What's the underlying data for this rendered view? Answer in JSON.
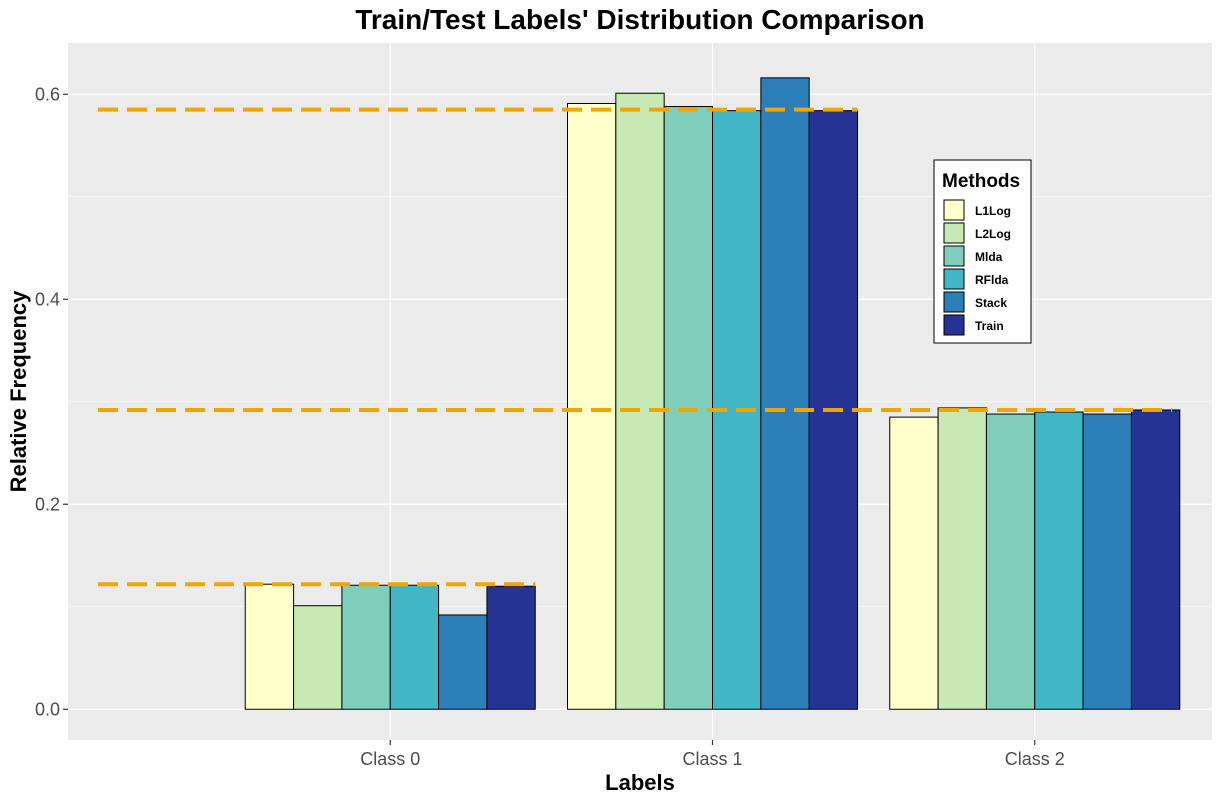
{
  "chart_data": {
    "type": "bar",
    "title": "Train/Test Labels' Distribution Comparison",
    "xlabel": "Labels",
    "ylabel": "Relative Frequency",
    "categories": [
      "Class 0",
      "Class 1",
      "Class 2"
    ],
    "ylim": [
      -0.03,
      0.65
    ],
    "yticks": [
      0.0,
      0.2,
      0.4,
      0.6
    ],
    "ytick_labels": [
      "0.0",
      "0.2",
      "0.4",
      "0.6"
    ],
    "grid": true,
    "legend": {
      "title": "Methods",
      "placement": "right"
    },
    "series": [
      {
        "name": "L1Log",
        "color": "#ffffcc",
        "values": [
          0.122,
          0.591,
          0.285
        ]
      },
      {
        "name": "L2Log",
        "color": "#c7e9b4",
        "values": [
          0.101,
          0.601,
          0.294
        ]
      },
      {
        "name": "Mlda",
        "color": "#7fcdbb",
        "values": [
          0.121,
          0.588,
          0.288
        ]
      },
      {
        "name": "RFlda",
        "color": "#41b6c4",
        "values": [
          0.121,
          0.584,
          0.29
        ]
      },
      {
        "name": "Stack",
        "color": "#2c7fb8",
        "values": [
          0.092,
          0.616,
          0.288
        ]
      },
      {
        "name": "Train",
        "color": "#253494",
        "values": [
          0.12,
          0.584,
          0.292
        ]
      }
    ],
    "reference_lines": [
      0.122,
      0.292,
      0.585
    ],
    "reference_line_color": "#f0a500",
    "panel_background": "#ebebeb",
    "grid_color": "#ffffff"
  }
}
